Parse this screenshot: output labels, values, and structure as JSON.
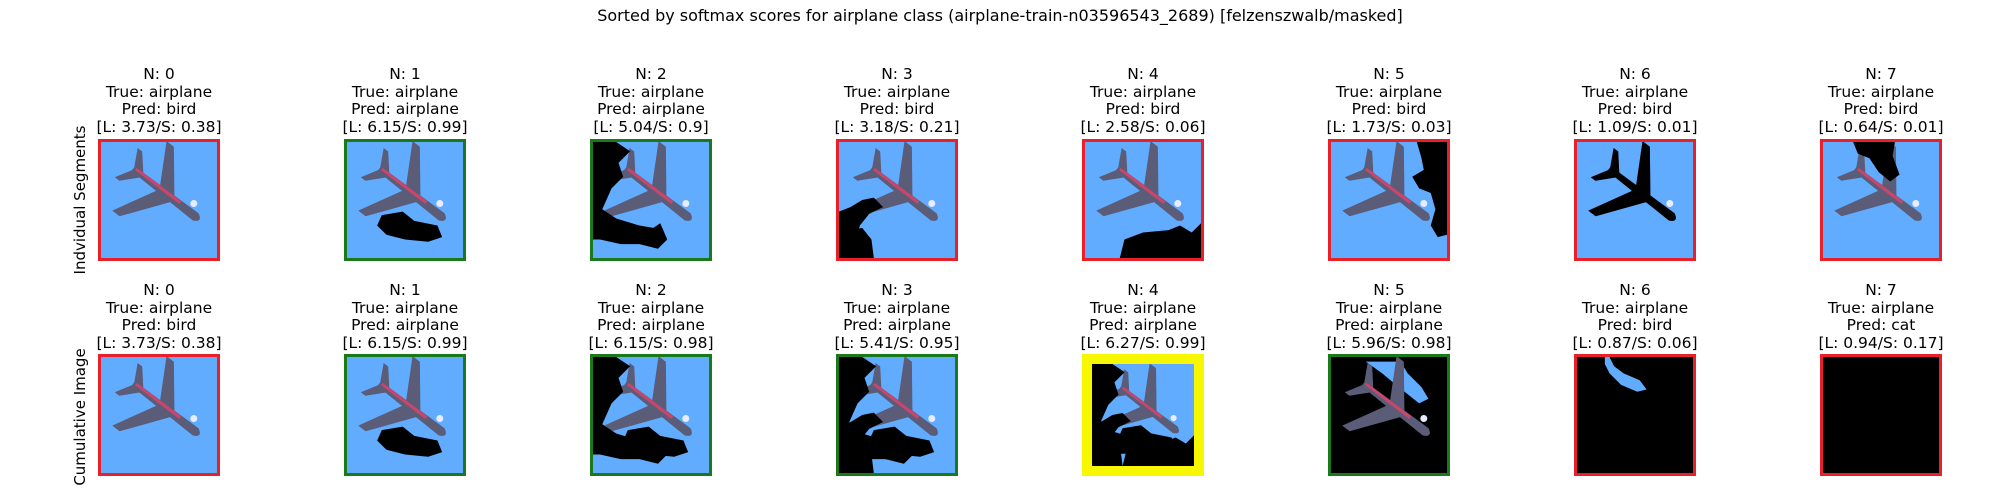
{
  "title": "Sorted by softmax scores for airplane class (airplane-train-n03596543_2689) [felzenszwalb/masked]",
  "rows": [
    {
      "label": "Indvidual Segments",
      "cells": [
        {
          "n": "N: 0",
          "truth": "True: airplane",
          "pred": "Pred: bird",
          "score": "[L: 3.73/S: 0.38]",
          "border": "red",
          "mask": "none"
        },
        {
          "n": "N: 1",
          "truth": "True: airplane",
          "pred": "Pred: airplane",
          "score": "[L: 6.15/S: 0.99]",
          "border": "green",
          "mask": "blob-bottom-center"
        },
        {
          "n": "N: 2",
          "truth": "True: airplane",
          "pred": "Pred: airplane",
          "score": "[L: 5.04/S: 0.9]",
          "border": "green",
          "mask": "left-region"
        },
        {
          "n": "N: 3",
          "truth": "True: airplane",
          "pred": "Pred: bird",
          "score": "[L: 3.18/S: 0.21]",
          "border": "red",
          "mask": "bottom-left"
        },
        {
          "n": "N: 4",
          "truth": "True: airplane",
          "pred": "Pred: bird",
          "score": "[L: 2.58/S: 0.06]",
          "border": "red",
          "mask": "bottom-right"
        },
        {
          "n": "N: 5",
          "truth": "True: airplane",
          "pred": "Pred: bird",
          "score": "[L: 1.73/S: 0.03]",
          "border": "red",
          "mask": "right-strip"
        },
        {
          "n": "N: 6",
          "truth": "True: airplane",
          "pred": "Pred: bird",
          "score": "[L: 1.09/S: 0.01]",
          "border": "red",
          "mask": "plane-silhouette"
        },
        {
          "n": "N: 7",
          "truth": "True: airplane",
          "pred": "Pred: bird",
          "score": "[L: 0.64/S: 0.01]",
          "border": "red",
          "mask": "top-notch"
        }
      ]
    },
    {
      "label": "Cumulative Image",
      "cells": [
        {
          "n": "N: 0",
          "truth": "True: airplane",
          "pred": "Pred: bird",
          "score": "[L: 3.73/S: 0.38]",
          "border": "red",
          "mask": "none"
        },
        {
          "n": "N: 1",
          "truth": "True: airplane",
          "pred": "Pred: airplane",
          "score": "[L: 6.15/S: 0.99]",
          "border": "green",
          "mask": "cum-1"
        },
        {
          "n": "N: 2",
          "truth": "True: airplane",
          "pred": "Pred: airplane",
          "score": "[L: 6.15/S: 0.98]",
          "border": "green",
          "mask": "cum-2"
        },
        {
          "n": "N: 3",
          "truth": "True: airplane",
          "pred": "Pred: airplane",
          "score": "[L: 5.41/S: 0.95]",
          "border": "green",
          "mask": "cum-3"
        },
        {
          "n": "N: 4",
          "truth": "True: airplane",
          "pred": "Pred: airplane",
          "score": "[L: 6.27/S: 0.99]",
          "border": "yellow",
          "mask": "cum-4"
        },
        {
          "n": "N: 5",
          "truth": "True: airplane",
          "pred": "Pred: airplane",
          "score": "[L: 5.96/S: 0.98]",
          "border": "green",
          "mask": "cum-5"
        },
        {
          "n": "N: 6",
          "truth": "True: airplane",
          "pred": "Pred: bird",
          "score": "[L: 0.87/S: 0.06]",
          "border": "red",
          "mask": "cum-6"
        },
        {
          "n": "N: 7",
          "truth": "True: airplane",
          "pred": "Pred: cat",
          "score": "[L: 0.94/S: 0.17]",
          "border": "red",
          "mask": "cum-7"
        }
      ]
    }
  ],
  "colors": {
    "sky": "#62acff",
    "mask": "#000000",
    "border_red": "#e8202a",
    "border_green": "#1a7a1a",
    "border_yellow": "#f7f700"
  }
}
